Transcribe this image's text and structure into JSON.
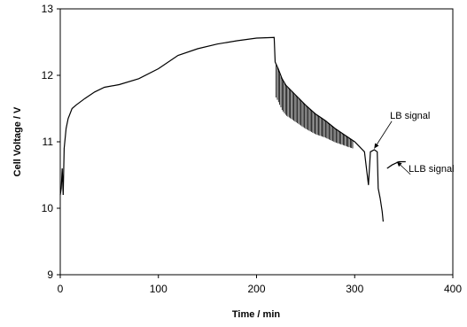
{
  "chart_data": {
    "type": "line",
    "title": "",
    "xlabel": "Time / min",
    "ylabel": "Cell Voltage / V",
    "xlim": [
      0,
      400
    ],
    "ylim": [
      9,
      13
    ],
    "xticks": [
      0,
      100,
      200,
      300,
      400
    ],
    "yticks": [
      9,
      10,
      11,
      12,
      13
    ],
    "grid": false,
    "legend": "none",
    "line_color": "#000000",
    "series": [
      {
        "points": [
          [
            0,
            10.2
          ],
          [
            1,
            10.3
          ],
          [
            2,
            10.6
          ],
          [
            3,
            10.2
          ],
          [
            4,
            10.9
          ],
          [
            6,
            11.2
          ],
          [
            8,
            11.35
          ],
          [
            12,
            11.5
          ],
          [
            16,
            11.55
          ],
          [
            25,
            11.65
          ],
          [
            35,
            11.75
          ],
          [
            45,
            11.82
          ],
          [
            60,
            11.86
          ],
          [
            80,
            11.95
          ],
          [
            100,
            12.1
          ],
          [
            120,
            12.3
          ],
          [
            140,
            12.4
          ],
          [
            160,
            12.47
          ],
          [
            180,
            12.52
          ],
          [
            200,
            12.56
          ],
          [
            218,
            12.57
          ],
          [
            219,
            12.2
          ],
          [
            222,
            12.1
          ],
          [
            226,
            11.95
          ],
          [
            230,
            11.85
          ],
          [
            240,
            11.7
          ],
          [
            250,
            11.55
          ],
          [
            260,
            11.42
          ],
          [
            270,
            11.32
          ],
          [
            280,
            11.2
          ],
          [
            290,
            11.1
          ],
          [
            300,
            11.0
          ],
          [
            310,
            10.85
          ],
          [
            314,
            10.35
          ],
          [
            316,
            10.85
          ],
          [
            320,
            10.88
          ],
          [
            323,
            10.85
          ],
          [
            324,
            10.3
          ],
          [
            326,
            10.15
          ],
          [
            328,
            9.95
          ],
          [
            329,
            9.8
          ]
        ]
      },
      {
        "points": [
          [
            333,
            10.6
          ],
          [
            338,
            10.65
          ],
          [
            345,
            10.7
          ],
          [
            352,
            10.7
          ]
        ]
      }
    ],
    "oscillation": {
      "x_start": 220,
      "x_end": 298,
      "amplitude_start": 0.5,
      "amplitude_end": 0.12
    },
    "annotations": [
      {
        "text": "LB signal",
        "x": 336,
        "y": 11.35,
        "arrow_to": [
          320,
          10.9
        ]
      },
      {
        "text": "LLB signal",
        "x": 355,
        "y": 10.55,
        "arrow_to": [
          343,
          10.7
        ]
      }
    ]
  }
}
